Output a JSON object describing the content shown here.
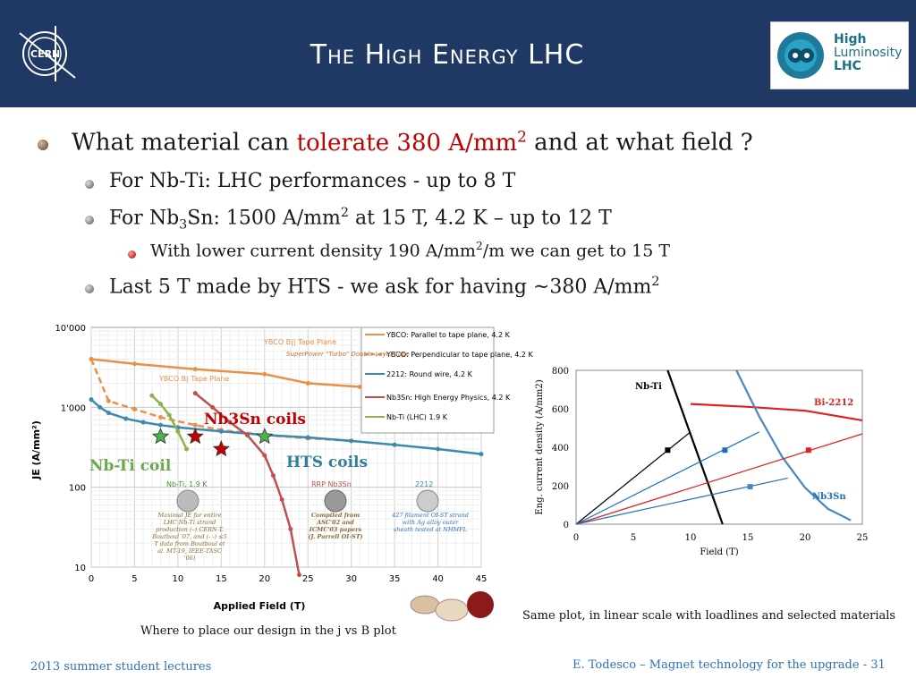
{
  "header": {
    "title": "The High Energy LHC",
    "cern_logo_text": "CERN",
    "hl_logo": {
      "line1": "High",
      "line2": "Luminosity",
      "line3": "LHC"
    }
  },
  "bullets": {
    "b1_pre": "What material can ",
    "b1_red": "tolerate 380 A/mm",
    "b1_red_sup": "2",
    "b1_post": " and at what field ?",
    "b2": "For Nb-Ti: LHC performances  - up to 8 T",
    "b3_pre": "For Nb",
    "b3_sub": "3",
    "b3_mid": "Sn: 1500 A/mm",
    "b3_sup": "2",
    "b3_post": " at 15 T, 4.2 K – up to 12 T",
    "b4_pre": "With lower current density 190 A/mm",
    "b4_sup": "2",
    "b4_post": "/m we can get to 15 T",
    "b5_pre": "Last 5 T made by HTS - we ask for having ~380 A/mm",
    "b5_sup": "2"
  },
  "captions": {
    "left": "Where to place our design  in the j vs B plot",
    "right": "Same plot, in linear scale with loadlines and selected materials"
  },
  "footer": {
    "left": "2013 summer student lectures",
    "right": "E. Todesco – Magnet technology for the upgrade - 31"
  },
  "chart_data": [
    {
      "type": "line",
      "xlabel": "Applied Field (T)",
      "ylabel": "JE (A/mm²)",
      "xlim": [
        0,
        45
      ],
      "ylim": [
        10,
        10000
      ],
      "log_y": true,
      "x_ticks": [
        "0",
        "5",
        "10",
        "15",
        "20",
        "25",
        "30",
        "35",
        "40",
        "45"
      ],
      "y_ticks": [
        "10",
        "100",
        "1'000",
        "10'000"
      ],
      "legend": [
        "YBCO: Parallel to tape plane, 4.2 K",
        "YBCO: Perpendicular to tape plane, 4.2 K",
        "2212: Round wire, 4.2 K",
        "Nb3Sn: High Energy Physics, 4.2 K",
        "Nb-Ti (LHC) 1.9 K"
      ],
      "series": [
        {
          "name": "YBCO: Parallel to tape plane, 4.2 K",
          "color": "#e8914a",
          "dash": false,
          "x": [
            0,
            5,
            12,
            20,
            25,
            31
          ],
          "y": [
            4000,
            3500,
            3000,
            2600,
            2000,
            1800
          ]
        },
        {
          "name": "YBCO: Perpendicular to tape plane, 4.2 K",
          "color": "#e8914a",
          "dash": true,
          "x": [
            0,
            2,
            5,
            8,
            12,
            15,
            20,
            25,
            30
          ],
          "y": [
            4000,
            1200,
            950,
            750,
            600,
            520,
            450,
            410,
            380
          ]
        },
        {
          "name": "2212: Round wire, 4.2 K",
          "color": "#3a8ab0",
          "dash": false,
          "x": [
            0,
            1,
            2,
            4,
            6,
            8,
            10,
            15,
            20,
            25,
            30,
            35,
            40,
            45
          ],
          "y": [
            1250,
            1000,
            850,
            720,
            650,
            600,
            560,
            500,
            450,
            420,
            380,
            340,
            300,
            260
          ]
        },
        {
          "name": "Nb3Sn: High Energy Physics, 4.2 K",
          "color": "#c0504d",
          "dash": false,
          "x": [
            12,
            14,
            16,
            18,
            20,
            21,
            22,
            23,
            24
          ],
          "y": [
            1500,
            1000,
            650,
            450,
            250,
            140,
            70,
            30,
            8
          ]
        },
        {
          "name": "Nb-Ti (LHC) 1.9 K",
          "color": "#8db34a",
          "dash": false,
          "x": [
            7,
            8,
            9,
            10,
            11
          ],
          "y": [
            1400,
            1100,
            800,
            500,
            300
          ]
        }
      ],
      "markers": [
        {
          "x": 8,
          "y": 430,
          "color": "#4caf50"
        },
        {
          "x": 12,
          "y": 430,
          "color": "#c00000"
        },
        {
          "x": 15,
          "y": 300,
          "color": "#c00000"
        },
        {
          "x": 20,
          "y": 430,
          "color": "#4caf50"
        }
      ],
      "annotations": {
        "nb3sn": "Nb3Sn coils",
        "nbti": "Nb-Ti coil",
        "hts": "HTS coils",
        "ybco_par": "YBCO B|| Tape Plane",
        "ybco_perp": "YBCO B|  Tape Plane",
        "superpower": "SuperPower \"Turbo\" Double Layer Tape",
        "nbti_label": "Nb-Ti, 1.9 K",
        "rrp_label": "RRP Nb3Sn",
        "bi2212_label": "2212",
        "nbti_note": "Maximal JE for entire LHC Nb-Ti strand production (–) CERN-T. Boutboul '07,  and (- -) ≤5 T data from Boutboul et al. MT-19, IEEE-TASC '06)",
        "rrp_note": "Compiled from ASC'02 and ICMC'03 papers (J. Parrell OI-ST)",
        "bi2212_note": "427 filament OI-ST strand with Ag alloy outer sheath tested at NHMFL"
      }
    },
    {
      "type": "line",
      "xlabel": "Field (T)",
      "ylabel": "Eng. current density (A/mm2)",
      "xlim": [
        0,
        25
      ],
      "ylim": [
        0,
        800
      ],
      "x_ticks": [
        "0",
        "5",
        "10",
        "15",
        "20",
        "25"
      ],
      "y_ticks": [
        "0",
        "200",
        "400",
        "600",
        "800"
      ],
      "labels": {
        "nbti": "Nb-Ti",
        "bi2212": "Bi-2212",
        "nb3sn": "Nb3Sn"
      },
      "series": [
        {
          "name": "Nb-Ti",
          "color": "#000000",
          "x": [
            8,
            12.8
          ],
          "y": [
            800,
            0
          ]
        },
        {
          "name": "Bi-2212",
          "color": "#e02020",
          "x": [
            10,
            15,
            20,
            25
          ],
          "y": [
            625,
            610,
            590,
            540
          ]
        },
        {
          "name": "Nb3Sn",
          "color": "#4a86c0",
          "x": [
            14,
            16,
            18,
            20,
            22,
            24
          ],
          "y": [
            800,
            560,
            350,
            190,
            80,
            20
          ]
        },
        {
          "name": "loadline-black",
          "color": "#000000",
          "x": [
            0,
            10
          ],
          "y": [
            0,
            480
          ]
        },
        {
          "name": "loadline-blue1",
          "color": "#1f6fb8",
          "x": [
            0,
            16
          ],
          "y": [
            0,
            480
          ]
        },
        {
          "name": "loadline-red",
          "color": "#e02020",
          "x": [
            0,
            25
          ],
          "y": [
            0,
            470
          ]
        },
        {
          "name": "loadline-blue2",
          "color": "#1f6fb8",
          "x": [
            0,
            18.5
          ],
          "y": [
            0,
            240
          ]
        }
      ],
      "points": [
        {
          "x": 8,
          "y": 385,
          "color": "#000000"
        },
        {
          "x": 13,
          "y": 385,
          "color": "#1f6fb8"
        },
        {
          "x": 20.3,
          "y": 385,
          "color": "#e02020"
        },
        {
          "x": 15.2,
          "y": 195,
          "color": "#4a86c0"
        }
      ]
    }
  ]
}
